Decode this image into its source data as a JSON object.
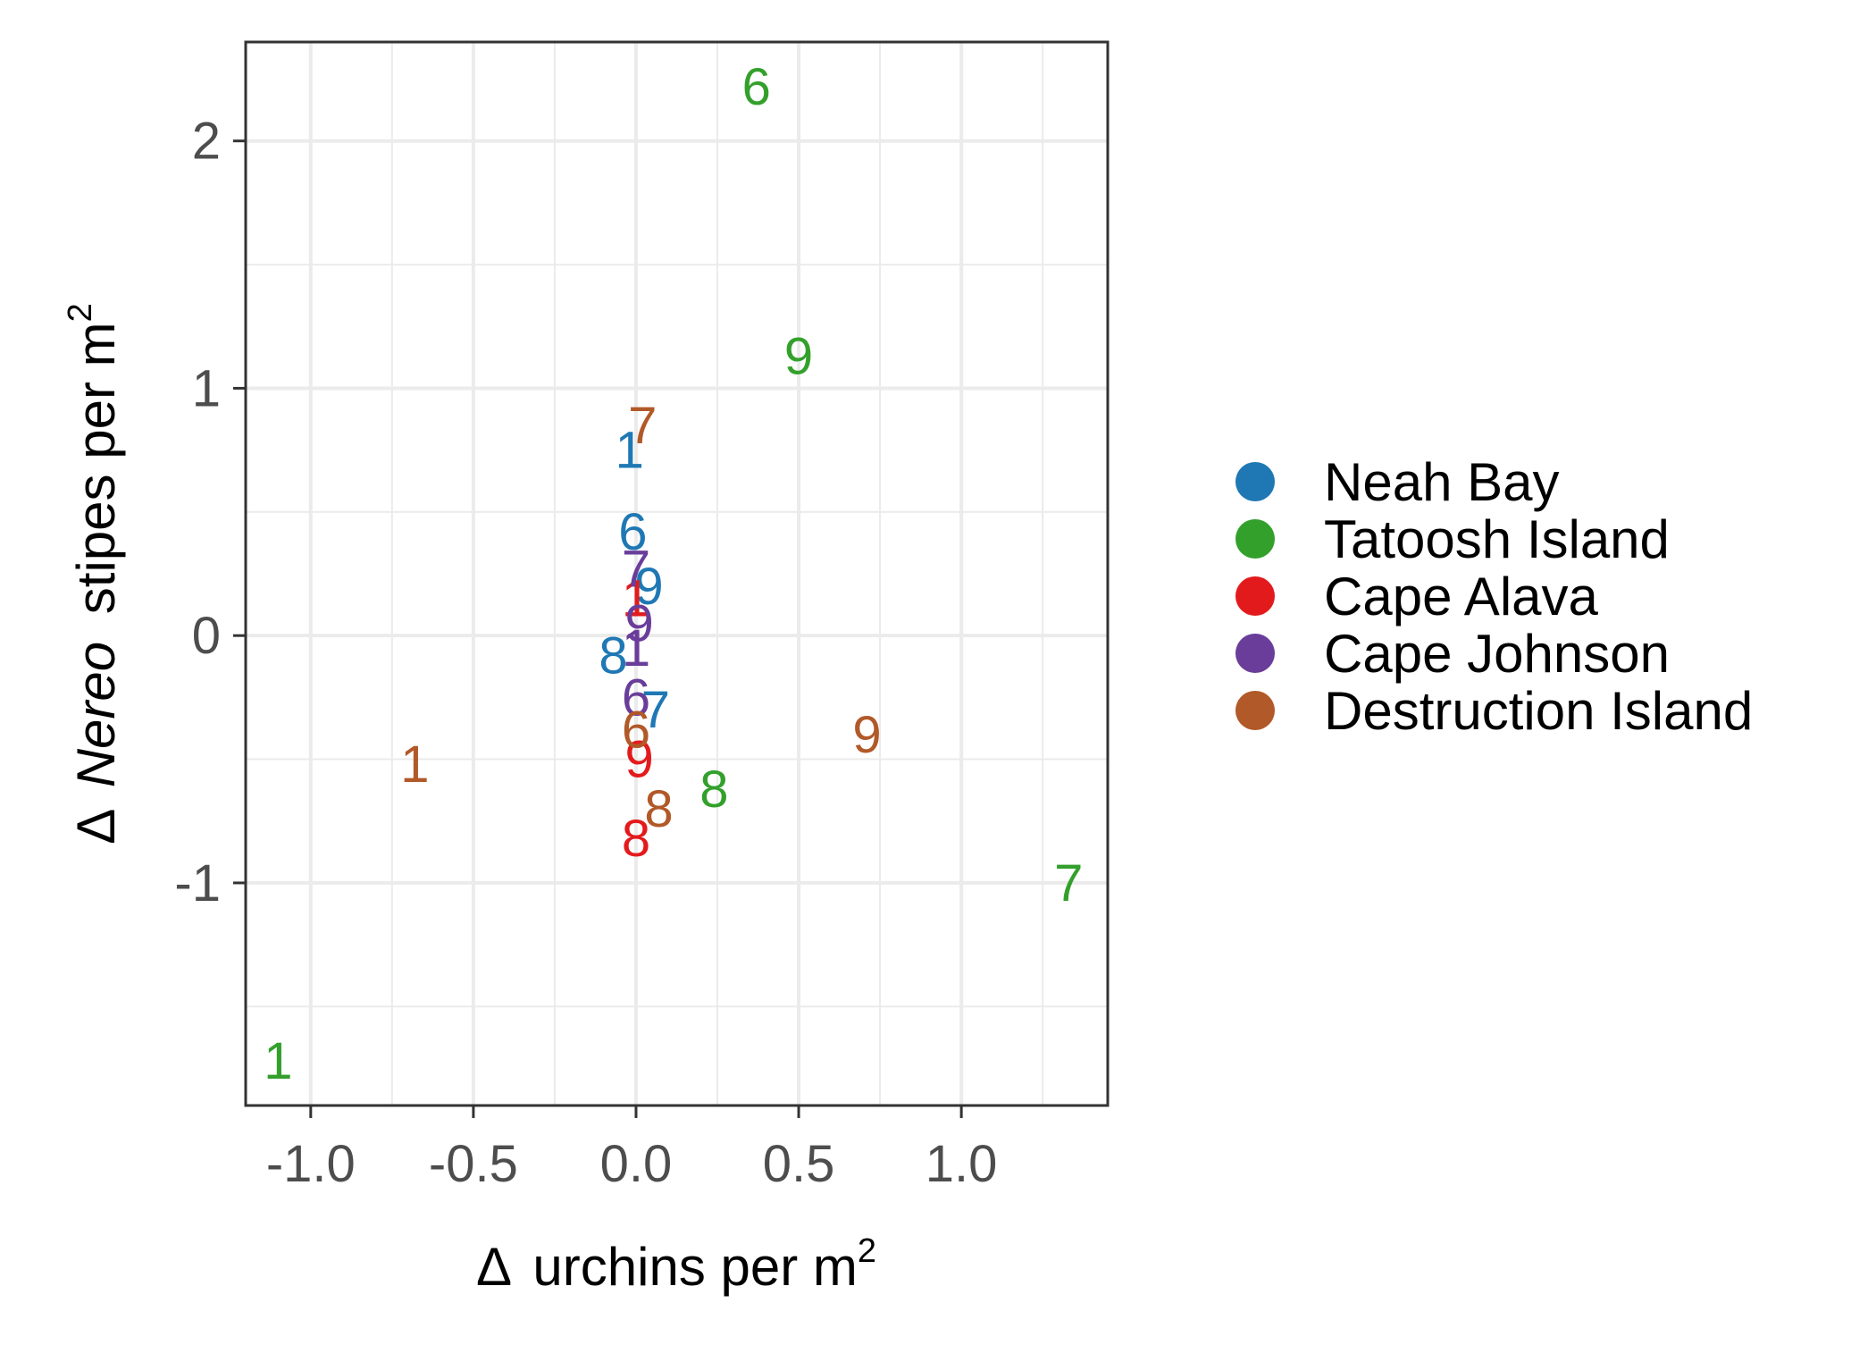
{
  "chart_data": {
    "type": "scatter",
    "marker": "text-label",
    "grid": true,
    "legend_position": "right",
    "xlim": [
      -1.2,
      1.45
    ],
    "ylim": [
      -1.9,
      2.4
    ],
    "x_major_ticks": [
      -1.0,
      -0.5,
      0.0,
      0.5,
      1.0
    ],
    "x_tick_labels": [
      "-1.0",
      "-0.5",
      "0.0",
      "0.5",
      "1.0"
    ],
    "x_minor_ticks": [
      -0.75,
      -0.25,
      0.25,
      0.75,
      1.25
    ],
    "y_major_ticks": [
      -1,
      0,
      1,
      2
    ],
    "y_tick_labels": [
      "-1",
      "0",
      "1",
      "2"
    ],
    "y_minor_ticks": [
      -1.5,
      -0.5,
      0.5,
      1.5
    ],
    "xlabel": {
      "delta": "Δ",
      "text": "urchins per m",
      "sup": "2"
    },
    "ylabel": {
      "delta": "Δ",
      "italic": "Nereo",
      "text": "stipes per m",
      "sup": "2"
    },
    "series": [
      {
        "name": "Neah Bay",
        "color": "#1f78b4",
        "points": [
          {
            "x": -0.02,
            "y": 0.75,
            "label": "1"
          },
          {
            "x": -0.01,
            "y": 0.42,
            "label": "6"
          },
          {
            "x": 0.06,
            "y": -0.3,
            "label": "7"
          },
          {
            "x": -0.07,
            "y": -0.08,
            "label": "8"
          },
          {
            "x": 0.04,
            "y": 0.2,
            "label": "9"
          }
        ]
      },
      {
        "name": "Tatoosh Island",
        "color": "#33a02c",
        "points": [
          {
            "x": -1.1,
            "y": -1.72,
            "label": "1"
          },
          {
            "x": 0.37,
            "y": 2.22,
            "label": "6"
          },
          {
            "x": 1.33,
            "y": -1.0,
            "label": "7"
          },
          {
            "x": 0.24,
            "y": -0.62,
            "label": "8"
          },
          {
            "x": 0.5,
            "y": 1.13,
            "label": "9"
          }
        ]
      },
      {
        "name": "Cape Alava",
        "color": "#e31a1c",
        "points": [
          {
            "x": 0.0,
            "y": 0.15,
            "label": "1"
          },
          {
            "x": 0.0,
            "y": -0.82,
            "label": "8"
          },
          {
            "x": 0.01,
            "y": -0.5,
            "label": "9"
          }
        ]
      },
      {
        "name": "Cape Johnson",
        "color": "#6a3d9a",
        "points": [
          {
            "x": 0.0,
            "y": -0.05,
            "label": "1"
          },
          {
            "x": 0.0,
            "y": -0.25,
            "label": "6"
          },
          {
            "x": 0.0,
            "y": 0.27,
            "label": "7"
          },
          {
            "x": 0.01,
            "y": 0.05,
            "label": "9"
          }
        ]
      },
      {
        "name": "Destruction Island",
        "color": "#b15928",
        "points": [
          {
            "x": -0.68,
            "y": -0.52,
            "label": "1"
          },
          {
            "x": 0.0,
            "y": -0.38,
            "label": "6"
          },
          {
            "x": 0.02,
            "y": 0.85,
            "label": "7"
          },
          {
            "x": 0.07,
            "y": -0.7,
            "label": "8"
          },
          {
            "x": 0.71,
            "y": -0.4,
            "label": "9"
          }
        ]
      }
    ]
  }
}
